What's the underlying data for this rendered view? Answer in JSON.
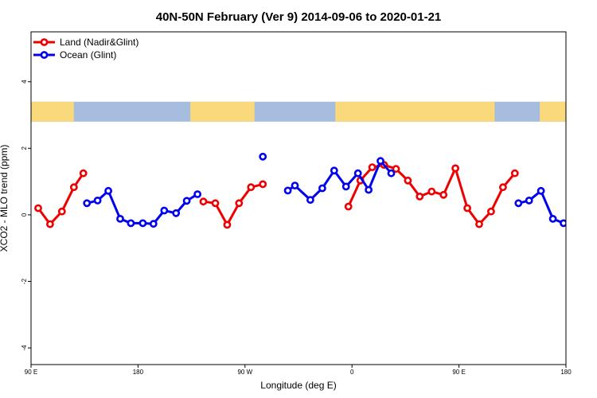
{
  "chart_data": {
    "type": "line",
    "title": "40N-50N February (Ver 9)   2014-09-06 to 2020-01-21",
    "xlabel": "Longitude (deg E)",
    "ylabel": "XCO2 - MLO trend (ppm)",
    "xlim": [
      90,
      540
    ],
    "ylim": [
      -4.5,
      5.5
    ],
    "grid": false,
    "legend_position": "top-left",
    "x_ticks": [
      {
        "value": 90,
        "label": "90 E"
      },
      {
        "value": 180,
        "label": "180"
      },
      {
        "value": 270,
        "label": "90 W"
      },
      {
        "value": 360,
        "label": "0"
      },
      {
        "value": 450,
        "label": "90 E"
      },
      {
        "value": 540,
        "label": "180"
      }
    ],
    "y_ticks": [
      {
        "value": -4,
        "label": "-4"
      },
      {
        "value": -2,
        "label": "-2"
      },
      {
        "value": 0,
        "label": "0"
      },
      {
        "value": 2,
        "label": "2"
      },
      {
        "value": 4,
        "label": "4"
      }
    ],
    "map_strip": {
      "y_range": [
        2.8,
        3.4
      ],
      "ocean_color": "#a7bde0",
      "land_color": "#f9d97c"
    },
    "series": [
      {
        "name": "Land (Nadir&Glint)",
        "color": "#ee0000",
        "segments": [
          [
            [
              96,
              0.2
            ],
            [
              106,
              -0.28
            ],
            [
              116,
              0.1
            ],
            [
              126,
              0.83
            ],
            [
              134,
              1.25
            ]
          ],
          [
            [
              235,
              0.4
            ],
            [
              245,
              0.35
            ],
            [
              255,
              -0.3
            ],
            [
              265,
              0.35
            ],
            [
              275,
              0.83
            ],
            [
              285,
              0.92
            ]
          ],
          [
            [
              357,
              0.25
            ],
            [
              367,
              1.03
            ],
            [
              377,
              1.43
            ],
            [
              387,
              1.5
            ],
            [
              397,
              1.38
            ],
            [
              407,
              1.03
            ],
            [
              417,
              0.55
            ],
            [
              427,
              0.7
            ],
            [
              437,
              0.6
            ],
            [
              447,
              1.4
            ],
            [
              457,
              0.2
            ],
            [
              467,
              -0.28
            ],
            [
              477,
              0.1
            ],
            [
              487,
              0.83
            ],
            [
              497,
              1.25
            ]
          ]
        ]
      },
      {
        "name": "Ocean (Glint)",
        "color": "#0000ee",
        "segments": [
          [
            [
              137,
              0.35
            ],
            [
              146,
              0.43
            ],
            [
              155,
              0.72
            ],
            [
              165,
              -0.12
            ],
            [
              174,
              -0.25
            ],
            [
              184,
              -0.25
            ],
            [
              193,
              -0.27
            ],
            [
              202,
              0.13
            ],
            [
              212,
              0.05
            ],
            [
              221,
              0.42
            ],
            [
              230,
              0.62
            ]
          ],
          [
            [
              285,
              1.75
            ]
          ],
          [
            [
              306,
              0.73
            ],
            [
              312,
              0.88
            ],
            [
              325,
              0.45
            ],
            [
              335,
              0.8
            ],
            [
              345,
              1.33
            ],
            [
              355,
              0.85
            ],
            [
              365,
              1.25
            ],
            [
              374,
              0.75
            ],
            [
              384,
              1.62
            ],
            [
              393,
              1.25
            ]
          ],
          [
            [
              500,
              0.35
            ],
            [
              509,
              0.43
            ],
            [
              519,
              0.72
            ],
            [
              529,
              -0.12
            ],
            [
              538,
              -0.25
            ]
          ]
        ]
      }
    ]
  }
}
